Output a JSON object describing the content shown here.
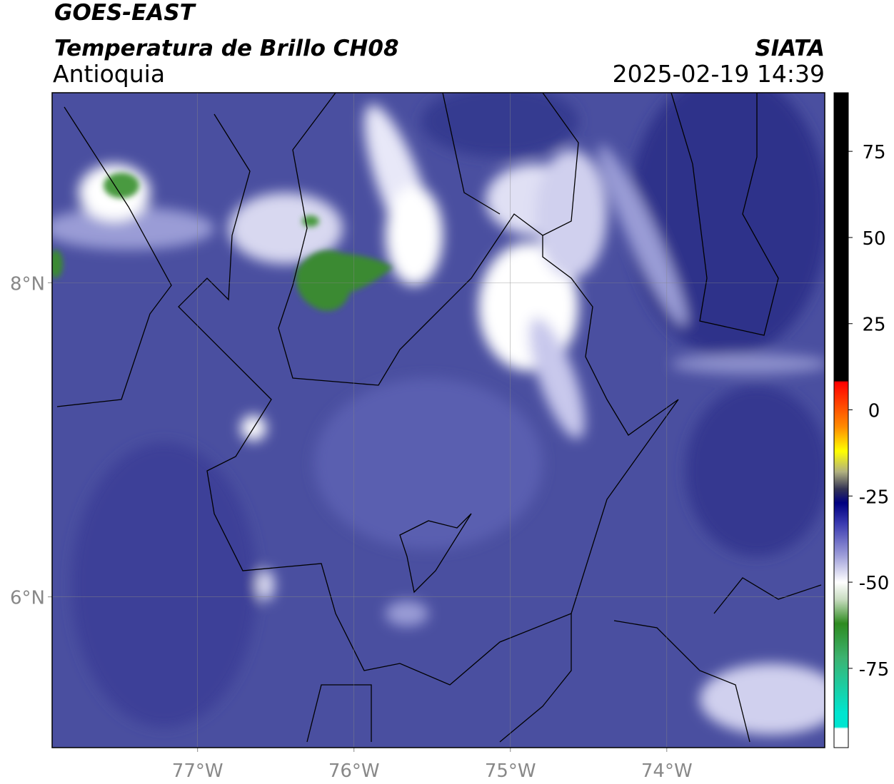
{
  "header": {
    "title": "GOES-EAST",
    "subtitle": "Temperatura de Brillo CH08",
    "region": "Antioquia",
    "source": "SIATA",
    "datetime": "2025-02-19 14:39"
  },
  "map": {
    "xlim": [
      -77.93,
      -72.99
    ],
    "ylim": [
      5.04,
      9.21
    ],
    "xticks": [
      {
        "value": -77,
        "label": "77°W"
      },
      {
        "value": -76,
        "label": "76°W"
      },
      {
        "value": -75,
        "label": "75°W"
      },
      {
        "value": -74,
        "label": "74°W"
      }
    ],
    "yticks": [
      {
        "value": 6,
        "label": "6°N"
      },
      {
        "value": 8,
        "label": "8°N"
      }
    ],
    "grid": true
  },
  "colorbar": {
    "lim": [
      -98,
      92
    ],
    "ticks": [
      75,
      50,
      25,
      0,
      -25,
      -50,
      -75
    ],
    "stops": [
      [
        92,
        "#000000"
      ],
      [
        8.5,
        "#000000"
      ],
      [
        8,
        "#ff0000"
      ],
      [
        -5,
        "#ff8c00"
      ],
      [
        -12,
        "#ffff00"
      ],
      [
        -18,
        "#b0b080"
      ],
      [
        -23,
        "#333355"
      ],
      [
        -27,
        "#000080"
      ],
      [
        -33,
        "#3a3ab0"
      ],
      [
        -42,
        "#9a9ad8"
      ],
      [
        -50,
        "#ffffff"
      ],
      [
        -55,
        "#c8dcc0"
      ],
      [
        -62,
        "#2e8b20"
      ],
      [
        -72,
        "#3cb371"
      ],
      [
        -88,
        "#00e5d0"
      ],
      [
        -92,
        "#00e5d0"
      ],
      [
        -92.5,
        "#ffffff"
      ],
      [
        -98,
        "#ffffff"
      ]
    ]
  }
}
